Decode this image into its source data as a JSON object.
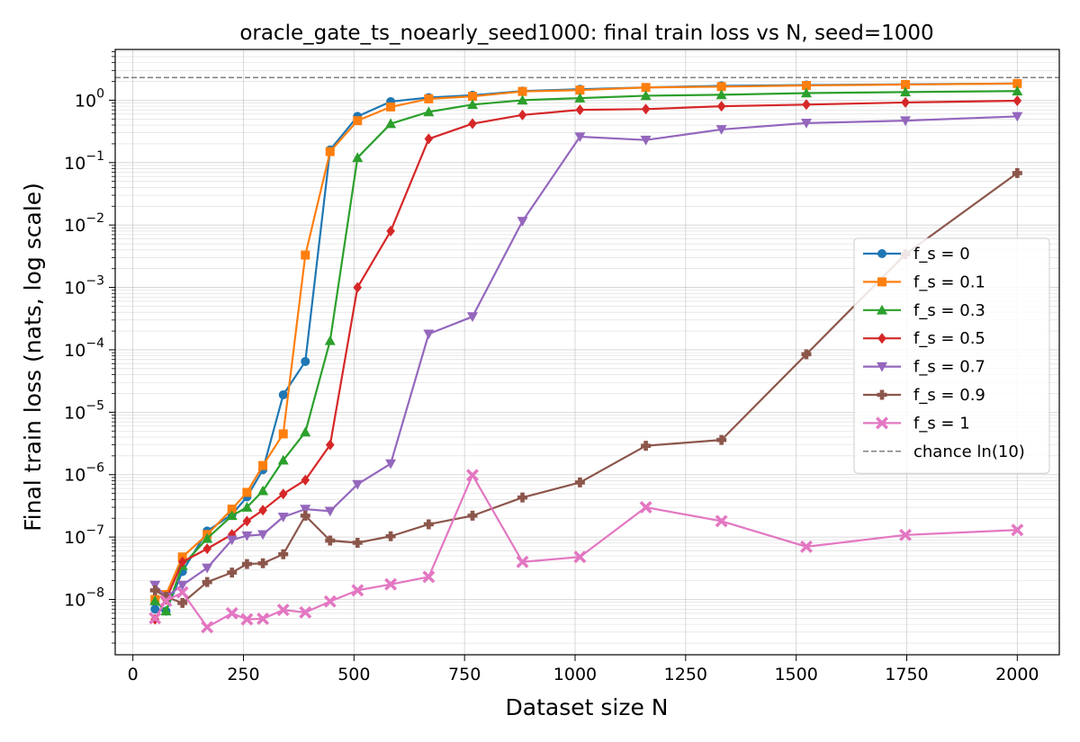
{
  "chart_data": {
    "type": "line",
    "title": "oracle_gate_ts_noearly_seed1000: final train loss vs N, seed=1000",
    "xlabel": "Dataset size N",
    "ylabel": "Final train loss (nats, log scale)",
    "xlim": [
      -40,
      2095
    ],
    "ylim": [
      1.3e-09,
      6.5
    ],
    "yscale": "log",
    "grid": true,
    "legend_position": "right",
    "x_ticks": [
      0,
      250,
      500,
      750,
      1000,
      1250,
      1500,
      1750,
      2000
    ],
    "x_tick_labels": [
      "0",
      "250",
      "500",
      "750",
      "1000",
      "1250",
      "1500",
      "1750",
      "2000"
    ],
    "y_tick_exponents": [
      -8,
      -7,
      -6,
      -5,
      -4,
      -3,
      -2,
      -1,
      0
    ],
    "y_tick_mantissa": "10",
    "y_tick_superscripts": [
      "−8",
      "−7",
      "−6",
      "−5",
      "−4",
      "−3",
      "−2",
      "−1",
      "0"
    ],
    "reference_line": {
      "name": "chance ln(10)",
      "y": 2.302585,
      "color": "#808080"
    },
    "x": [
      50,
      75,
      112,
      168,
      224,
      258,
      294,
      340,
      390,
      446,
      508,
      583,
      669,
      768,
      881,
      1011,
      1160,
      1331,
      1523,
      1747,
      2000
    ],
    "series": [
      {
        "name": "f_s = 0",
        "color": "#1f77b4",
        "marker": "circle",
        "values": [
          7e-09,
          6.5e-09,
          2.8e-08,
          1.25e-07,
          2.3e-07,
          4.4e-07,
          1.2e-06,
          1.9e-05,
          6.5e-05,
          0.16,
          0.55,
          0.95,
          1.1,
          1.2,
          1.4,
          1.5,
          1.6,
          1.7,
          1.75,
          1.8,
          1.85
        ]
      },
      {
        "name": "f_s = 0.1",
        "color": "#ff7f0e",
        "marker": "square",
        "values": [
          1e-08,
          1.2e-08,
          4.8e-08,
          1.1e-07,
          2.8e-07,
          5.2e-07,
          1.4e-06,
          4.5e-06,
          0.0033,
          0.15,
          0.47,
          0.78,
          1.05,
          1.15,
          1.38,
          1.45,
          1.6,
          1.65,
          1.72,
          1.78,
          1.85
        ]
      },
      {
        "name": "f_s = 0.3",
        "color": "#2ca02c",
        "marker": "triangle-up",
        "values": [
          9.5e-09,
          6.5e-09,
          3.5e-08,
          9.5e-08,
          2.2e-07,
          3e-07,
          5.5e-07,
          1.7e-06,
          4.8e-06,
          0.00014,
          0.12,
          0.42,
          0.65,
          0.85,
          1.0,
          1.08,
          1.18,
          1.22,
          1.3,
          1.35,
          1.4
        ]
      },
      {
        "name": "f_s = 0.5",
        "color": "#d62728",
        "marker": "diamond",
        "values": [
          4.8e-09,
          1e-08,
          4e-08,
          6.5e-08,
          1.1e-07,
          1.8e-07,
          2.7e-07,
          4.9e-07,
          8.2e-07,
          3e-06,
          0.001,
          0.008,
          0.24,
          0.42,
          0.58,
          0.7,
          0.72,
          0.8,
          0.85,
          0.92,
          0.98
        ]
      },
      {
        "name": "f_s = 0.7",
        "color": "#9467bd",
        "marker": "triangle-down",
        "values": [
          1.7e-08,
          1.1e-08,
          1.7e-08,
          3.2e-08,
          9e-08,
          1.05e-07,
          1.1e-07,
          2.1e-07,
          2.8e-07,
          2.6e-07,
          7e-07,
          1.5e-06,
          0.00018,
          0.00034,
          0.0115,
          0.26,
          0.23,
          0.34,
          0.43,
          0.47,
          0.55
        ]
      },
      {
        "name": "f_s = 0.9",
        "color": "#8c564b",
        "marker": "plus",
        "values": [
          1.4e-08,
          1.1e-08,
          8.8e-09,
          1.9e-08,
          2.7e-08,
          3.7e-08,
          3.8e-08,
          5.3e-08,
          2.2e-07,
          8.8e-08,
          8.1e-08,
          1.03e-07,
          1.6e-07,
          2.2e-07,
          4.3e-07,
          7.5e-07,
          2.9e-06,
          3.6e-06,
          8.5e-05,
          0.0034,
          0.068
        ]
      },
      {
        "name": "f_s = 1",
        "color": "#e377c2",
        "marker": "x",
        "values": [
          5e-09,
          9.5e-09,
          1.3e-08,
          3.6e-09,
          6e-09,
          4.8e-09,
          4.9e-09,
          6.8e-09,
          6.2e-09,
          9.3e-09,
          1.4e-08,
          1.75e-08,
          2.3e-08,
          9.8e-07,
          4e-08,
          4.8e-08,
          3e-07,
          1.8e-07,
          7e-08,
          1.08e-07,
          1.3e-07
        ]
      }
    ]
  }
}
